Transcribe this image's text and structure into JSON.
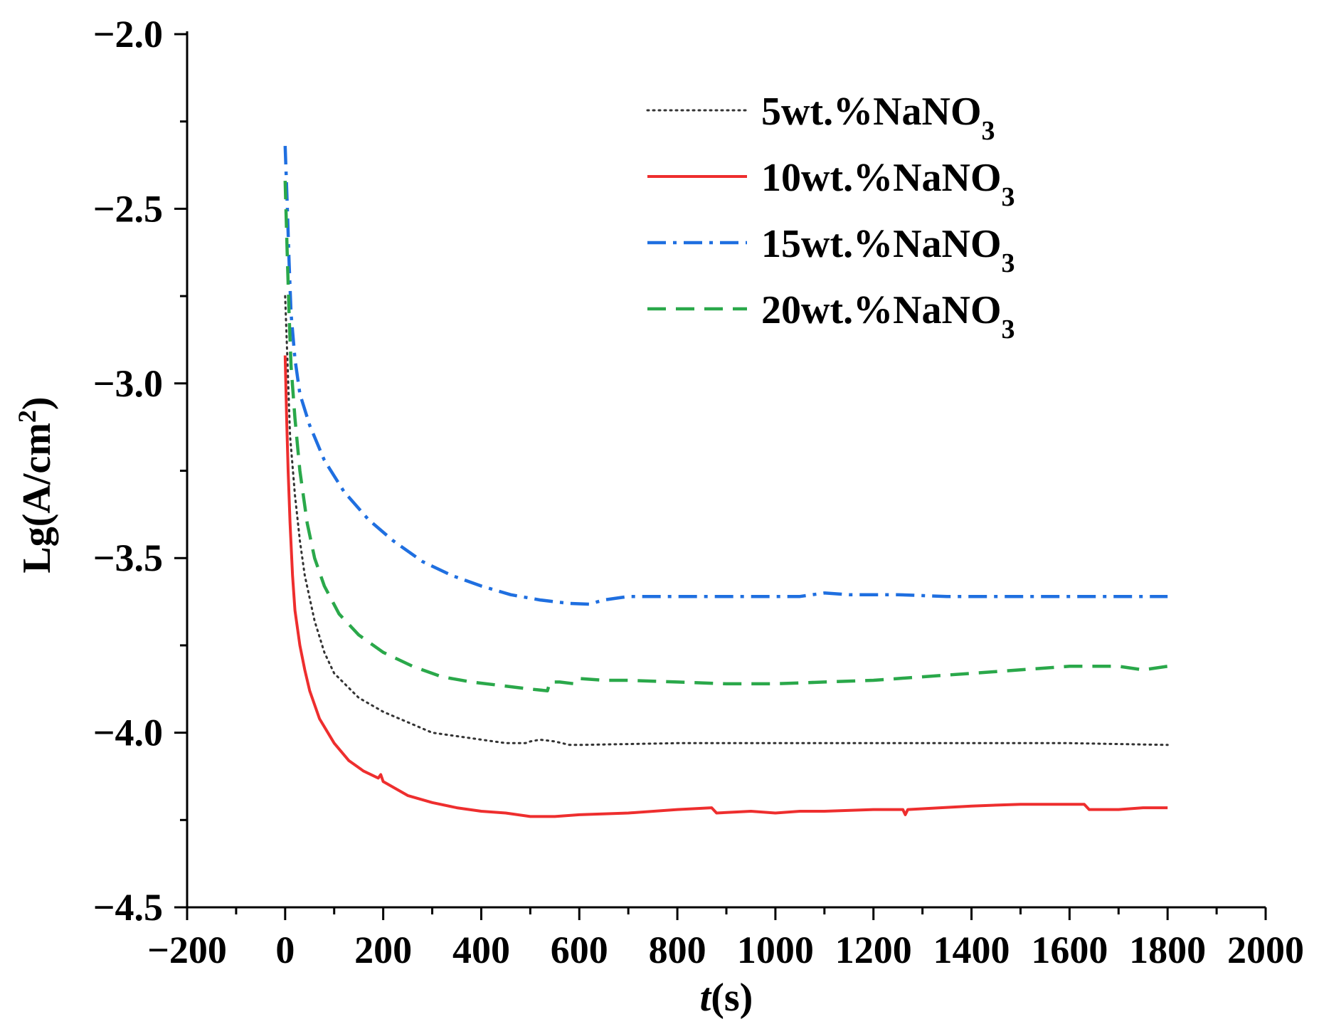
{
  "chart_data": {
    "type": "line",
    "title": "",
    "xlabel": {
      "italic": "t",
      "rest": "(s)"
    },
    "ylabel": {
      "main": "Lg(A/cm",
      "sup": "2",
      "close": ")"
    },
    "xlim": [
      -200,
      2000
    ],
    "ylim": [
      -4.5,
      -2.0
    ],
    "x_ticks": [
      -200,
      0,
      200,
      400,
      600,
      800,
      1000,
      1200,
      1400,
      1600,
      1800,
      2000
    ],
    "x_tick_labels": [
      "−200",
      "0",
      "200",
      "400",
      "600",
      "800",
      "1000",
      "1200",
      "1400",
      "1600",
      "1800",
      "2000"
    ],
    "y_ticks": [
      -2.0,
      -2.5,
      -3.0,
      -3.5,
      -4.0,
      -4.5
    ],
    "y_tick_labels": [
      "−2.0",
      "−2.5",
      "−3.0",
      "−3.5",
      "−4.0",
      "−4.5"
    ],
    "legend_position": "top-right",
    "series": [
      {
        "name": "5wt.%NaNO3",
        "label_main": "5wt.%NaNO",
        "label_sub": "3",
        "color": "#333333",
        "style": "dotted",
        "points": [
          [
            0,
            -2.75
          ],
          [
            5,
            -2.95
          ],
          [
            10,
            -3.15
          ],
          [
            20,
            -3.32
          ],
          [
            30,
            -3.45
          ],
          [
            40,
            -3.55
          ],
          [
            60,
            -3.68
          ],
          [
            80,
            -3.77
          ],
          [
            100,
            -3.83
          ],
          [
            150,
            -3.9
          ],
          [
            200,
            -3.94
          ],
          [
            250,
            -3.97
          ],
          [
            300,
            -4.0
          ],
          [
            350,
            -4.01
          ],
          [
            400,
            -4.02
          ],
          [
            450,
            -4.03
          ],
          [
            490,
            -4.03
          ],
          [
            500,
            -4.025
          ],
          [
            520,
            -4.02
          ],
          [
            550,
            -4.025
          ],
          [
            580,
            -4.035
          ],
          [
            600,
            -4.035
          ],
          [
            800,
            -4.03
          ],
          [
            1000,
            -4.03
          ],
          [
            1200,
            -4.03
          ],
          [
            1400,
            -4.03
          ],
          [
            1600,
            -4.03
          ],
          [
            1800,
            -4.035
          ]
        ]
      },
      {
        "name": "10wt.%NaNO3",
        "label_main": "10wt.%NaNO",
        "label_sub": "3",
        "color": "#ee2e2e",
        "style": "solid",
        "points": [
          [
            0,
            -2.92
          ],
          [
            3,
            -3.1
          ],
          [
            6,
            -3.25
          ],
          [
            10,
            -3.4
          ],
          [
            15,
            -3.55
          ],
          [
            20,
            -3.65
          ],
          [
            30,
            -3.75
          ],
          [
            40,
            -3.82
          ],
          [
            50,
            -3.88
          ],
          [
            70,
            -3.96
          ],
          [
            100,
            -4.03
          ],
          [
            130,
            -4.08
          ],
          [
            160,
            -4.11
          ],
          [
            190,
            -4.13
          ],
          [
            195,
            -4.12
          ],
          [
            200,
            -4.14
          ],
          [
            250,
            -4.18
          ],
          [
            300,
            -4.2
          ],
          [
            350,
            -4.215
          ],
          [
            400,
            -4.225
          ],
          [
            450,
            -4.23
          ],
          [
            500,
            -4.24
          ],
          [
            550,
            -4.24
          ],
          [
            600,
            -4.235
          ],
          [
            700,
            -4.23
          ],
          [
            800,
            -4.22
          ],
          [
            870,
            -4.215
          ],
          [
            880,
            -4.23
          ],
          [
            950,
            -4.225
          ],
          [
            1000,
            -4.23
          ],
          [
            1050,
            -4.225
          ],
          [
            1100,
            -4.225
          ],
          [
            1200,
            -4.22
          ],
          [
            1260,
            -4.22
          ],
          [
            1265,
            -4.235
          ],
          [
            1270,
            -4.22
          ],
          [
            1400,
            -4.21
          ],
          [
            1500,
            -4.205
          ],
          [
            1630,
            -4.205
          ],
          [
            1640,
            -4.22
          ],
          [
            1700,
            -4.22
          ],
          [
            1750,
            -4.215
          ],
          [
            1800,
            -4.215
          ]
        ]
      },
      {
        "name": "15wt.%NaNO3",
        "label_main": "15wt.%NaNO",
        "label_sub": "3",
        "color": "#1f6fe0",
        "style": "dash-dot",
        "points": [
          [
            0,
            -2.32
          ],
          [
            4,
            -2.48
          ],
          [
            8,
            -2.65
          ],
          [
            12,
            -2.8
          ],
          [
            20,
            -2.93
          ],
          [
            30,
            -3.03
          ],
          [
            50,
            -3.12
          ],
          [
            80,
            -3.22
          ],
          [
            120,
            -3.31
          ],
          [
            170,
            -3.39
          ],
          [
            220,
            -3.45
          ],
          [
            280,
            -3.51
          ],
          [
            340,
            -3.55
          ],
          [
            400,
            -3.58
          ],
          [
            460,
            -3.605
          ],
          [
            520,
            -3.62
          ],
          [
            580,
            -3.63
          ],
          [
            620,
            -3.632
          ],
          [
            650,
            -3.62
          ],
          [
            700,
            -3.61
          ],
          [
            760,
            -3.61
          ],
          [
            850,
            -3.61
          ],
          [
            950,
            -3.61
          ],
          [
            1050,
            -3.61
          ],
          [
            1100,
            -3.6
          ],
          [
            1150,
            -3.605
          ],
          [
            1250,
            -3.605
          ],
          [
            1350,
            -3.61
          ],
          [
            1450,
            -3.61
          ],
          [
            1550,
            -3.61
          ],
          [
            1650,
            -3.61
          ],
          [
            1800,
            -3.61
          ]
        ]
      },
      {
        "name": "20wt.%NaNO3",
        "label_main": "20wt.%NaNO",
        "label_sub": "3",
        "color": "#2aa84a",
        "style": "dashed",
        "points": [
          [
            0,
            -2.42
          ],
          [
            4,
            -2.62
          ],
          [
            8,
            -2.8
          ],
          [
            12,
            -2.95
          ],
          [
            20,
            -3.1
          ],
          [
            30,
            -3.25
          ],
          [
            45,
            -3.4
          ],
          [
            60,
            -3.5
          ],
          [
            80,
            -3.58
          ],
          [
            110,
            -3.66
          ],
          [
            150,
            -3.72
          ],
          [
            200,
            -3.77
          ],
          [
            260,
            -3.81
          ],
          [
            320,
            -3.84
          ],
          [
            380,
            -3.855
          ],
          [
            440,
            -3.865
          ],
          [
            500,
            -3.875
          ],
          [
            535,
            -3.88
          ],
          [
            540,
            -3.855
          ],
          [
            560,
            -3.855
          ],
          [
            590,
            -3.86
          ],
          [
            600,
            -3.845
          ],
          [
            650,
            -3.85
          ],
          [
            700,
            -3.85
          ],
          [
            800,
            -3.855
          ],
          [
            900,
            -3.86
          ],
          [
            1000,
            -3.86
          ],
          [
            1100,
            -3.855
          ],
          [
            1200,
            -3.85
          ],
          [
            1300,
            -3.84
          ],
          [
            1400,
            -3.83
          ],
          [
            1500,
            -3.82
          ],
          [
            1600,
            -3.81
          ],
          [
            1700,
            -3.81
          ],
          [
            1750,
            -3.82
          ],
          [
            1800,
            -3.81
          ]
        ]
      }
    ]
  }
}
